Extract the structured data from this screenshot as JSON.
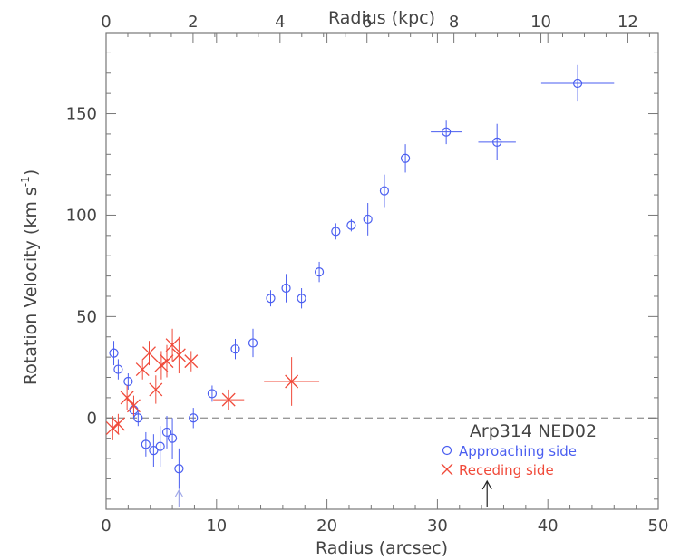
{
  "chart_data": {
    "type": "scatter",
    "title": "",
    "xlabel": "Radius (arcsec)",
    "x2label": "Radius (kpc)",
    "ylabel": "Rotation Velocity (km s",
    "ylabel_unit_sup": "-1",
    "ylabel_close": ")",
    "xlim": [
      0,
      50
    ],
    "x2lim": [
      0,
      12.7
    ],
    "ylim": [
      -45,
      190
    ],
    "xticks": [
      0,
      10,
      20,
      30,
      40,
      50
    ],
    "xtick_labels": [
      "0",
      "10",
      "20",
      "30",
      "40",
      "50"
    ],
    "x2ticks": [
      0,
      2,
      4,
      6,
      8,
      10,
      12
    ],
    "x2tick_labels": [
      "0",
      "2",
      "4",
      "6",
      "8",
      "10",
      "12"
    ],
    "yticks": [
      0,
      50,
      100,
      150
    ],
    "ytick_labels": [
      "0",
      "50",
      "100",
      "150"
    ],
    "zero_line": 0,
    "annotation": {
      "text": "Arp314 NED02",
      "arrow_x": 34.5
    },
    "legend_position": "bottom-right",
    "colors": {
      "approaching": "#4a5ef0",
      "receding": "#f04a3a",
      "axis": "#777777",
      "zero_line": "#999999",
      "marker_arrow": "#a0a8e8"
    },
    "series": [
      {
        "name": "Approaching side",
        "marker": "circle",
        "points": [
          {
            "x": 0.7,
            "y": 32,
            "xerr": 0,
            "yerr": 6
          },
          {
            "x": 1.1,
            "y": 24,
            "xerr": 0,
            "yerr": 5
          },
          {
            "x": 2.0,
            "y": 18,
            "xerr": 0,
            "yerr": 4
          },
          {
            "x": 2.5,
            "y": 4,
            "xerr": 0,
            "yerr": 4
          },
          {
            "x": 2.9,
            "y": 0,
            "xerr": 0,
            "yerr": 4
          },
          {
            "x": 3.6,
            "y": -13,
            "xerr": 0,
            "yerr": 6
          },
          {
            "x": 4.3,
            "y": -16,
            "xerr": 0,
            "yerr": 8
          },
          {
            "x": 4.9,
            "y": -14,
            "xerr": 0,
            "yerr": 10
          },
          {
            "x": 5.5,
            "y": -7,
            "xerr": 0,
            "yerr": 8
          },
          {
            "x": 6.0,
            "y": -10,
            "xerr": 0,
            "yerr": 10
          },
          {
            "x": 6.6,
            "y": -25,
            "xerr": 0,
            "yerr": 10
          },
          {
            "x": 7.9,
            "y": 0,
            "xerr": 0,
            "yerr": 5
          },
          {
            "x": 9.6,
            "y": 12,
            "xerr": 0,
            "yerr": 4
          },
          {
            "x": 11.7,
            "y": 34,
            "xerr": 0,
            "yerr": 5
          },
          {
            "x": 13.3,
            "y": 37,
            "xerr": 0,
            "yerr": 7
          },
          {
            "x": 14.9,
            "y": 59,
            "xerr": 0,
            "yerr": 4
          },
          {
            "x": 16.3,
            "y": 64,
            "xerr": 0,
            "yerr": 7
          },
          {
            "x": 17.7,
            "y": 59,
            "xerr": 0,
            "yerr": 5
          },
          {
            "x": 19.3,
            "y": 72,
            "xerr": 0,
            "yerr": 5
          },
          {
            "x": 20.8,
            "y": 92,
            "xerr": 0,
            "yerr": 4
          },
          {
            "x": 22.2,
            "y": 95,
            "xerr": 0,
            "yerr": 3
          },
          {
            "x": 23.7,
            "y": 98,
            "xerr": 0,
            "yerr": 8
          },
          {
            "x": 25.2,
            "y": 112,
            "xerr": 0,
            "yerr": 8
          },
          {
            "x": 27.1,
            "y": 128,
            "xerr": 0,
            "yerr": 7
          },
          {
            "x": 30.8,
            "y": 141,
            "xerr": 1.4,
            "yerr": 6
          },
          {
            "x": 35.4,
            "y": 136,
            "xerr": 1.7,
            "yerr": 9
          },
          {
            "x": 42.7,
            "y": 165,
            "xerr": 3.3,
            "yerr": 9
          }
        ]
      },
      {
        "name": "Receding side",
        "marker": "x",
        "points": [
          {
            "x": 0.6,
            "y": -5,
            "xerr": 0,
            "yerr": 6
          },
          {
            "x": 1.1,
            "y": -3,
            "xerr": 0,
            "yerr": 5
          },
          {
            "x": 1.9,
            "y": 10,
            "xerr": 0,
            "yerr": 6
          },
          {
            "x": 2.5,
            "y": 6,
            "xerr": 0,
            "yerr": 5
          },
          {
            "x": 3.3,
            "y": 24,
            "xerr": 0,
            "yerr": 5
          },
          {
            "x": 3.9,
            "y": 32,
            "xerr": 0,
            "yerr": 6
          },
          {
            "x": 4.5,
            "y": 14,
            "xerr": 0,
            "yerr": 7
          },
          {
            "x": 5.0,
            "y": 26,
            "xerr": 0,
            "yerr": 7
          },
          {
            "x": 5.5,
            "y": 28,
            "xerr": 0,
            "yerr": 8
          },
          {
            "x": 6.0,
            "y": 36,
            "xerr": 0,
            "yerr": 8
          },
          {
            "x": 6.6,
            "y": 31,
            "xerr": 0,
            "yerr": 9
          },
          {
            "x": 7.7,
            "y": 28,
            "xerr": 0,
            "yerr": 5
          },
          {
            "x": 11.1,
            "y": 9,
            "xerr": 1.4,
            "yerr": 5
          },
          {
            "x": 16.8,
            "y": 18,
            "xerr": 2.5,
            "yerr": 12
          }
        ]
      }
    ]
  }
}
